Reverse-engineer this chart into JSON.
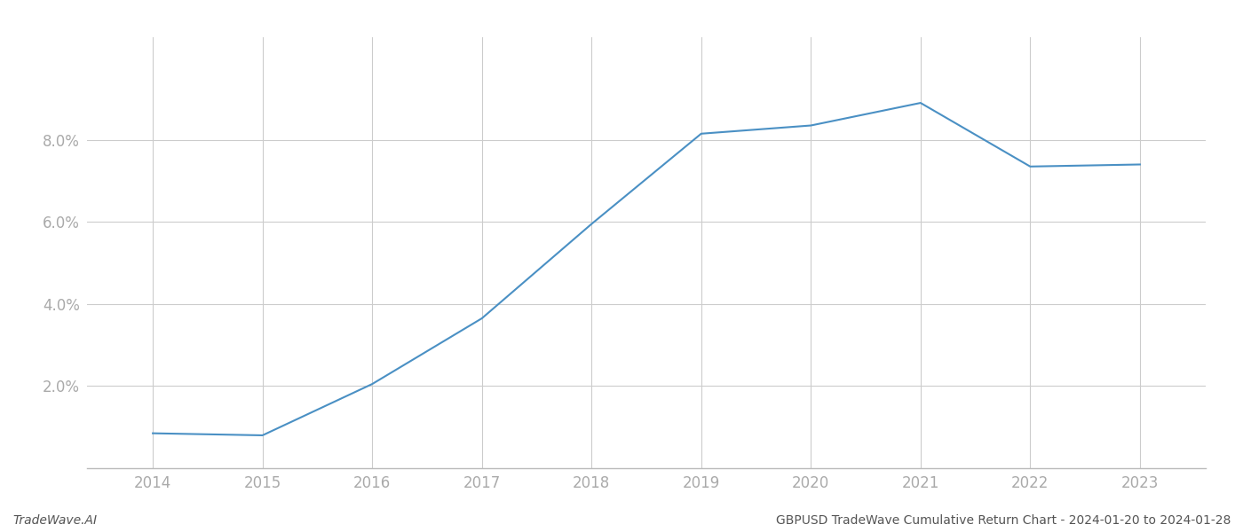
{
  "years": [
    2014,
    2015,
    2016,
    2017,
    2018,
    2019,
    2020,
    2021,
    2022,
    2023
  ],
  "values": [
    0.0085,
    0.008,
    0.0205,
    0.0365,
    0.0595,
    0.0815,
    0.0835,
    0.089,
    0.0735,
    0.074
  ],
  "line_color": "#4a90c4",
  "line_width": 1.5,
  "background_color": "#ffffff",
  "grid_color": "#cccccc",
  "tick_color": "#aaaaaa",
  "footer_left": "TradeWave.AI",
  "footer_right": "GBPUSD TradeWave Cumulative Return Chart - 2024-01-20 to 2024-01-28",
  "ylim_min": 0.0,
  "ylim_max": 0.105,
  "yticks": [
    0.02,
    0.04,
    0.06,
    0.08
  ],
  "ytick_labels": [
    "2.0%",
    "4.0%",
    "6.0%",
    "8.0%"
  ],
  "xtick_labels": [
    "2014",
    "2015",
    "2016",
    "2017",
    "2018",
    "2019",
    "2020",
    "2021",
    "2022",
    "2023"
  ],
  "footer_fontsize": 10,
  "tick_fontsize": 12
}
